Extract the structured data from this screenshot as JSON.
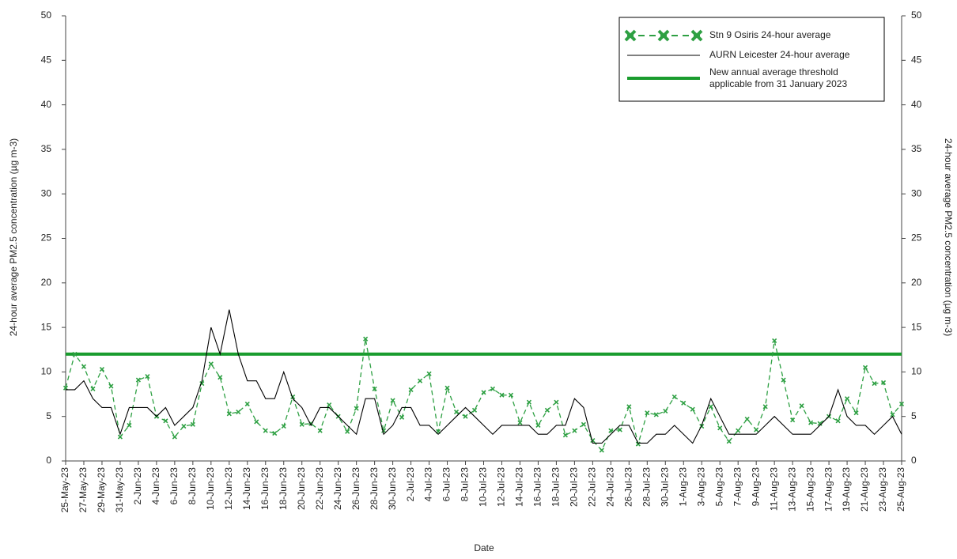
{
  "chart_data": {
    "type": "line",
    "xlabel": "Date",
    "ylabel": "24-hour average PM2.5 concentration (µg m-3)",
    "y2label": "24-hour average PM2.5 concentration (µg m-3)",
    "categories": [
      "25-May-23",
      null,
      "27-May-23",
      null,
      "29-May-23",
      null,
      "31-May-23",
      null,
      "2-Jun-23",
      null,
      "4-Jun-23",
      null,
      "6-Jun-23",
      null,
      "8-Jun-23",
      null,
      "10-Jun-23",
      null,
      "12-Jun-23",
      null,
      "14-Jun-23",
      null,
      "16-Jun-23",
      null,
      "18-Jun-23",
      null,
      "20-Jun-23",
      null,
      "22-Jun-23",
      null,
      "24-Jun-23",
      null,
      "26-Jun-23",
      null,
      "28-Jun-23",
      null,
      "30-Jun-23",
      null,
      "2-Jul-23",
      null,
      "4-Jul-23",
      null,
      "6-Jul-23",
      null,
      "8-Jul-23",
      null,
      "10-Jul-23",
      null,
      "12-Jul-23",
      null,
      "14-Jul-23",
      null,
      "16-Jul-23",
      null,
      "18-Jul-23",
      null,
      "20-Jul-23",
      null,
      "22-Jul-23",
      null,
      "24-Jul-23",
      null,
      "26-Jul-23",
      null,
      "28-Jul-23",
      null,
      "30-Jul-23",
      null,
      "1-Aug-23",
      null,
      "3-Aug-23",
      null,
      "5-Aug-23",
      null,
      "7-Aug-23",
      null,
      "9-Aug-23",
      null,
      "11-Aug-23",
      null,
      "13-Aug-23",
      null,
      "15-Aug-23",
      null,
      "17-Aug-23",
      null,
      "19-Aug-23",
      null,
      "21-Aug-23",
      null,
      "23-Aug-23",
      null,
      "25-Aug-23"
    ],
    "series": [
      {
        "name": "Stn 9 Osiris 24-hour average",
        "color": "#2ea043",
        "dashed": true,
        "marker": "x",
        "values": [
          8.2,
          12.0,
          10.6,
          8.1,
          10.3,
          8.4,
          2.7,
          4.0,
          9.1,
          9.5,
          5.0,
          4.5,
          2.7,
          3.9,
          4.1,
          8.7,
          10.9,
          9.4,
          5.3,
          5.5,
          6.4,
          4.4,
          3.4,
          3.1,
          3.9,
          7.2,
          4.1,
          4.2,
          3.4,
          6.3,
          5.0,
          3.3,
          5.9,
          13.7,
          8.1,
          3.4,
          6.8,
          4.9,
          8.0,
          9.0,
          9.8,
          3.3,
          8.2,
          5.5,
          5.0,
          5.7,
          7.7,
          8.1,
          7.4,
          7.4,
          4.3,
          6.6,
          4.0,
          5.7,
          6.6,
          2.9,
          3.4,
          4.1,
          2.3,
          1.2,
          3.4,
          3.5,
          6.1,
          1.9,
          5.4,
          5.2,
          5.6,
          7.2,
          6.5,
          5.8,
          3.9,
          6.1,
          3.7,
          2.2,
          3.4,
          4.7,
          3.5,
          6.1,
          13.5,
          9.1,
          4.6,
          6.2,
          4.3,
          4.2,
          5.0,
          4.5,
          7.0,
          5.4,
          10.5,
          8.7,
          8.8,
          5.2,
          6.4
        ]
      },
      {
        "name": "AURN Leicester 24-hour average",
        "color": "#000000",
        "dashed": false,
        "marker": null,
        "values": [
          8,
          8,
          9,
          7,
          6,
          6,
          3,
          6,
          6,
          6,
          5,
          6,
          4,
          5,
          6,
          9,
          15,
          12,
          17,
          12,
          9,
          9,
          7,
          7,
          10,
          7,
          6,
          4,
          6,
          6,
          5,
          4,
          3,
          7,
          7,
          3,
          4,
          6,
          6,
          4,
          4,
          3,
          4,
          5,
          6,
          5,
          4,
          3,
          4,
          4,
          4,
          4,
          3,
          3,
          4,
          4,
          7,
          6,
          2,
          2,
          3,
          4,
          4,
          2,
          2,
          3,
          3,
          4,
          3,
          2,
          4,
          7,
          5,
          3,
          3,
          3,
          3,
          4,
          5,
          4,
          3,
          3,
          3,
          4,
          5,
          8,
          5,
          4,
          4,
          3,
          4,
          5,
          3
        ]
      }
    ],
    "threshold": {
      "name": [
        "New annual average threshold",
        "applicable from 31 January 2023"
      ],
      "value": 12,
      "color": "#1a9c2e"
    },
    "ylim": [
      0,
      50
    ],
    "yticks": [
      0,
      5,
      10,
      15,
      20,
      25,
      30,
      35,
      40,
      45,
      50
    ],
    "y2lim": [
      0,
      50
    ],
    "y2ticks": [
      0,
      5,
      10,
      15,
      20,
      25,
      30,
      35,
      40,
      45,
      50
    ],
    "grid": false,
    "legend": "upper right"
  }
}
